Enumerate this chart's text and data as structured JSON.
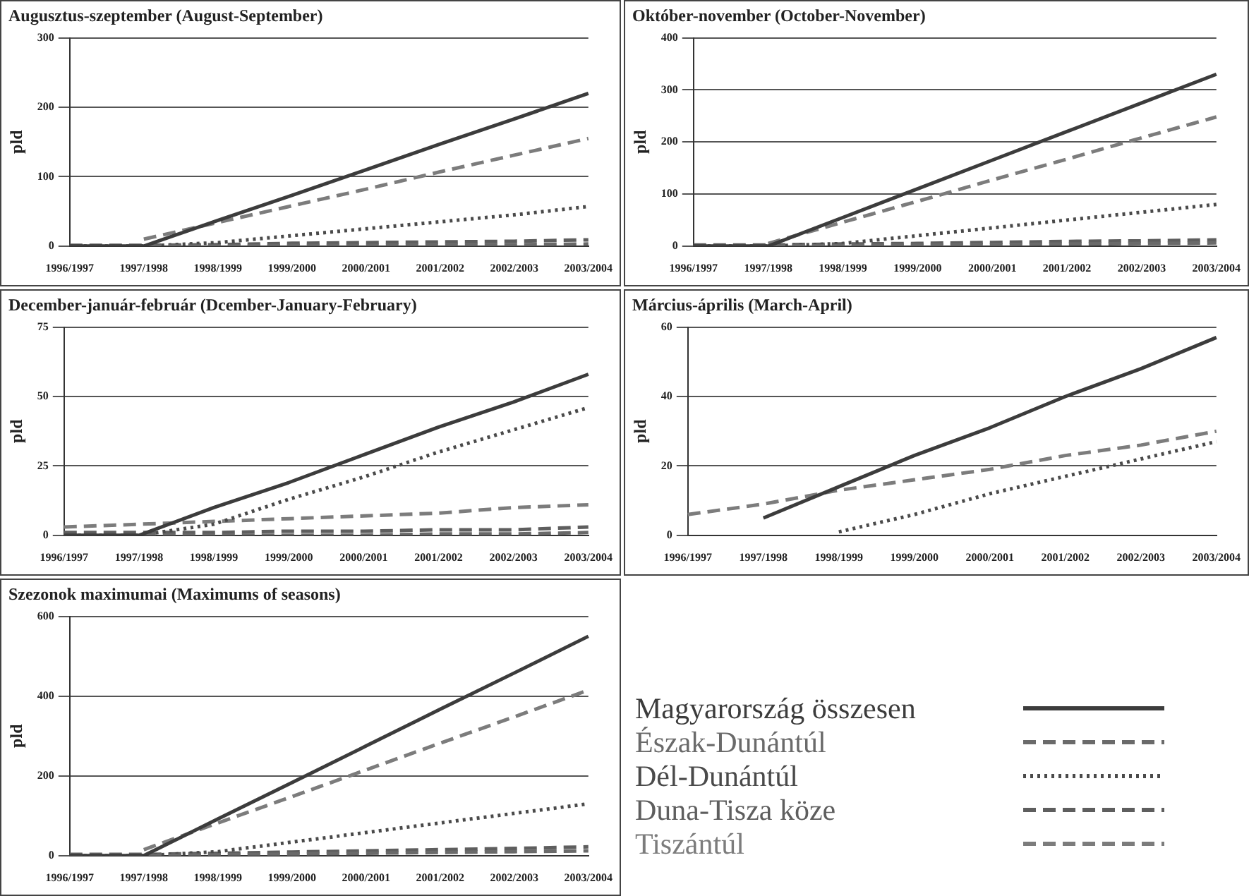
{
  "chart_data": [
    {
      "type": "line",
      "title": "Augusztus-szeptember (August-September)",
      "ylabel": "pld",
      "categories": [
        "1996/1997",
        "1997/1998",
        "1998/1999",
        "1999/2000",
        "2000/2001",
        "2001/2002",
        "2002/2003",
        "2003/2004"
      ],
      "ylim": [
        0,
        300
      ],
      "yticks": [
        0,
        100,
        200,
        300
      ],
      "grid": "y",
      "marker": "none",
      "series": [
        {
          "color": "#3c3c3c",
          "line_style": "solid",
          "values": [
            0,
            0,
            37,
            73,
            110,
            147,
            183,
            220
          ]
        },
        {
          "color": "#6a6a6a",
          "line_style": "dashed",
          "values": [
            0,
            0,
            0,
            1,
            1,
            2,
            2,
            3
          ]
        },
        {
          "color": "#4a4a4a",
          "line_style": "dotted",
          "values": [
            0,
            0,
            5,
            15,
            25,
            35,
            45,
            57
          ]
        },
        {
          "color": "#5e5e5e",
          "line_style": "dashed",
          "values": [
            1,
            1,
            2,
            4,
            5,
            6,
            7,
            9
          ]
        },
        {
          "color": "#7c7c7c",
          "line_style": "dashed",
          "values": [
            null,
            10,
            34,
            58,
            82,
            107,
            131,
            155
          ]
        }
      ]
    },
    {
      "type": "line",
      "title": "Október-november (October-November)",
      "ylabel": "pld",
      "categories": [
        "1996/1997",
        "1997/1998",
        "1998/1999",
        "1999/2000",
        "2000/2001",
        "2001/2002",
        "2002/2003",
        "2003/2004"
      ],
      "ylim": [
        0,
        400
      ],
      "yticks": [
        0,
        100,
        200,
        300,
        400
      ],
      "grid": "y",
      "marker": "none",
      "series": [
        {
          "color": "#3c3c3c",
          "line_style": "solid",
          "values": [
            0,
            0,
            55,
            110,
            165,
            220,
            275,
            330
          ]
        },
        {
          "color": "#6a6a6a",
          "line_style": "dashed",
          "values": [
            0,
            0,
            1,
            2,
            3,
            4,
            5,
            6
          ]
        },
        {
          "color": "#4a4a4a",
          "line_style": "dotted",
          "values": [
            0,
            0,
            5,
            20,
            35,
            50,
            65,
            80
          ]
        },
        {
          "color": "#5e5e5e",
          "line_style": "dashed",
          "values": [
            2,
            2,
            4,
            5,
            7,
            9,
            10,
            12
          ]
        },
        {
          "color": "#7c7c7c",
          "line_style": "dashed",
          "values": [
            null,
            5,
            46,
            86,
            127,
            167,
            208,
            248
          ]
        }
      ]
    },
    {
      "type": "line",
      "title": "December-január-február (Dcember-January-February)",
      "ylabel": "pld",
      "categories": [
        "1996/1997",
        "1997/1998",
        "1998/1999",
        "1999/2000",
        "2000/2001",
        "2001/2002",
        "2002/2003",
        "2003/2004"
      ],
      "ylim": [
        0,
        75
      ],
      "yticks": [
        0,
        25,
        50,
        75
      ],
      "grid": "y",
      "marker": "none",
      "series": [
        {
          "color": "#3c3c3c",
          "line_style": "solid",
          "values": [
            0,
            0,
            10,
            19,
            29,
            39,
            48,
            58
          ]
        },
        {
          "color": "#6a6a6a",
          "line_style": "dashed",
          "values": [
            0,
            0,
            0,
            0,
            0,
            0.5,
            0.5,
            1
          ]
        },
        {
          "color": "#4a4a4a",
          "line_style": "dotted",
          "values": [
            0,
            0,
            4,
            13,
            21,
            30,
            38,
            46
          ]
        },
        {
          "color": "#5e5e5e",
          "line_style": "dashed",
          "values": [
            1,
            1,
            1,
            1.5,
            1.5,
            2,
            2,
            3
          ]
        },
        {
          "color": "#7c7c7c",
          "line_style": "dashed",
          "values": [
            3,
            4,
            5,
            6,
            7,
            8,
            10,
            11
          ]
        }
      ]
    },
    {
      "type": "line",
      "title": "Március-április (March-April)",
      "ylabel": "pld",
      "categories": [
        "1996/1997",
        "1997/1998",
        "1998/1999",
        "1999/2000",
        "2000/2001",
        "2001/2002",
        "2002/2003",
        "2003/2004"
      ],
      "ylim": [
        0,
        60
      ],
      "yticks": [
        0,
        20,
        40,
        60
      ],
      "grid": "y",
      "marker": "none",
      "series": [
        {
          "color": "#3c3c3c",
          "line_style": "solid",
          "values": [
            null,
            5,
            14,
            23,
            31,
            40,
            48,
            57
          ]
        },
        {
          "color": "#4a4a4a",
          "line_style": "dotted",
          "values": [
            null,
            null,
            1,
            6,
            12,
            17,
            22,
            27
          ]
        },
        {
          "color": "#7c7c7c",
          "line_style": "dashed",
          "values": [
            6,
            9,
            13,
            16,
            19,
            23,
            26,
            30
          ]
        }
      ]
    },
    {
      "type": "line",
      "title": "Szezonok maximumai (Maximums of seasons)",
      "ylabel": "pld",
      "categories": [
        "1996/1997",
        "1997/1998",
        "1998/1999",
        "1999/2000",
        "2000/2001",
        "2001/2002",
        "2002/2003",
        "2003/2004"
      ],
      "ylim": [
        0,
        600
      ],
      "yticks": [
        0,
        200,
        400,
        600
      ],
      "grid": "y",
      "marker": "none",
      "legend": "right",
      "series": [
        {
          "name": "Magyarország összesen",
          "color": "#3c3c3c",
          "line_style": "solid",
          "values": [
            0,
            0,
            92,
            183,
            275,
            367,
            458,
            550
          ]
        },
        {
          "name": "Észak-Dunántúl",
          "color": "#6a6a6a",
          "line_style": "dashed",
          "values": [
            0,
            0,
            2,
            4,
            6,
            8,
            10,
            12
          ]
        },
        {
          "name": "Dél-Dunántúl",
          "color": "#4a4a4a",
          "line_style": "dotted",
          "values": [
            0,
            0,
            10,
            34,
            58,
            82,
            106,
            130
          ]
        },
        {
          "name": "Duna-Tisza köze",
          "color": "#5e5e5e",
          "line_style": "dashed",
          "values": [
            3,
            3,
            6,
            9,
            12,
            15,
            18,
            22
          ]
        },
        {
          "name": "Tiszántúl",
          "color": "#7c7c7c",
          "line_style": "dashed",
          "values": [
            null,
            15,
            82,
            148,
            215,
            282,
            348,
            415
          ]
        }
      ]
    }
  ]
}
